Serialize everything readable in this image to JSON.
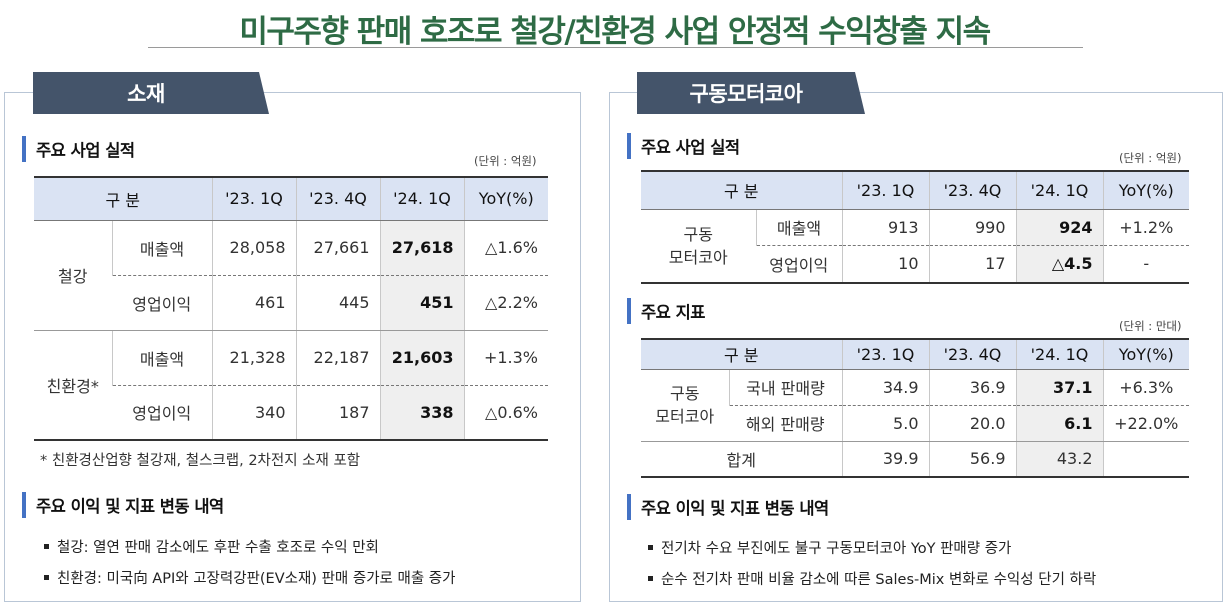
{
  "title": "미구주향 판매 호조로 철강/친환경 사업 안정적 수익창출 지속",
  "left": {
    "tab": "소재",
    "section1": "주요 사업 실적",
    "unit": "(단위 : 억원)",
    "headers": [
      "구 분",
      "'23. 1Q",
      "'23. 4Q",
      "'24. 1Q",
      "YoY(%)"
    ],
    "group1": "철강",
    "group2": "친환경*",
    "rows": [
      {
        "item": "매출액",
        "v1": "28,058",
        "v2": "27,661",
        "v3": "27,618",
        "yoy": "△1.6%"
      },
      {
        "item": "영업이익",
        "v1": "461",
        "v2": "445",
        "v3": "451",
        "yoy": "△2.2%"
      },
      {
        "item": "매출액",
        "v1": "21,328",
        "v2": "22,187",
        "v3": "21,603",
        "yoy": "+1.3%"
      },
      {
        "item": "영업이익",
        "v1": "340",
        "v2": "187",
        "v3": "338",
        "yoy": "△0.6%"
      }
    ],
    "footnote": "* 친환경산업향 철강재, 철스크랩, 2차전지 소재 포함",
    "section2": "주요 이익 및 지표 변동 내역",
    "bullets": [
      "철강: 열연 판매 감소에도 후판 수출 호조로 수익 만회",
      "친환경: 미국向 API와 고장력강판(EV소재) 판매 증가로 매출 증가"
    ]
  },
  "right": {
    "tab": "구동모터코아",
    "section1": "주요 사업 실적",
    "unit1": "(단위 : 억원)",
    "headers": [
      "구 분",
      "'23. 1Q",
      "'23. 4Q",
      "'24. 1Q",
      "YoY(%)"
    ],
    "group1_line1": "구동",
    "group1_line2": "모터코아",
    "rows1": [
      {
        "item": "매출액",
        "v1": "913",
        "v2": "990",
        "v3": "924",
        "yoy": "+1.2%"
      },
      {
        "item": "영업이익",
        "v1": "10",
        "v2": "17",
        "v3": "△4.5",
        "yoy": "-"
      }
    ],
    "section2": "주요 지표",
    "unit2": "(단위 : 만대)",
    "group2_line1": "구동",
    "group2_line2": "모터코아",
    "rows2": [
      {
        "item": "국내 판매량",
        "v1": "34.9",
        "v2": "36.9",
        "v3": "37.1",
        "yoy": "+6.3%"
      },
      {
        "item": "해외 판매량",
        "v1": "5.0",
        "v2": "20.0",
        "v3": "6.1",
        "yoy": "+22.0%"
      }
    ],
    "total": {
      "label": "합계",
      "v1": "39.9",
      "v2": "56.9",
      "v3": "43.2",
      "yoy": ""
    },
    "section3": "주요 이익 및 지표 변동 내역",
    "bullets": [
      "전기차 수요 부진에도 불구 구동모터코아 YoY 판매량  증가",
      "순수 전기차 판매 비율 감소에 따른 Sales-Mix 변화로 수익성 단기 하락"
    ]
  }
}
